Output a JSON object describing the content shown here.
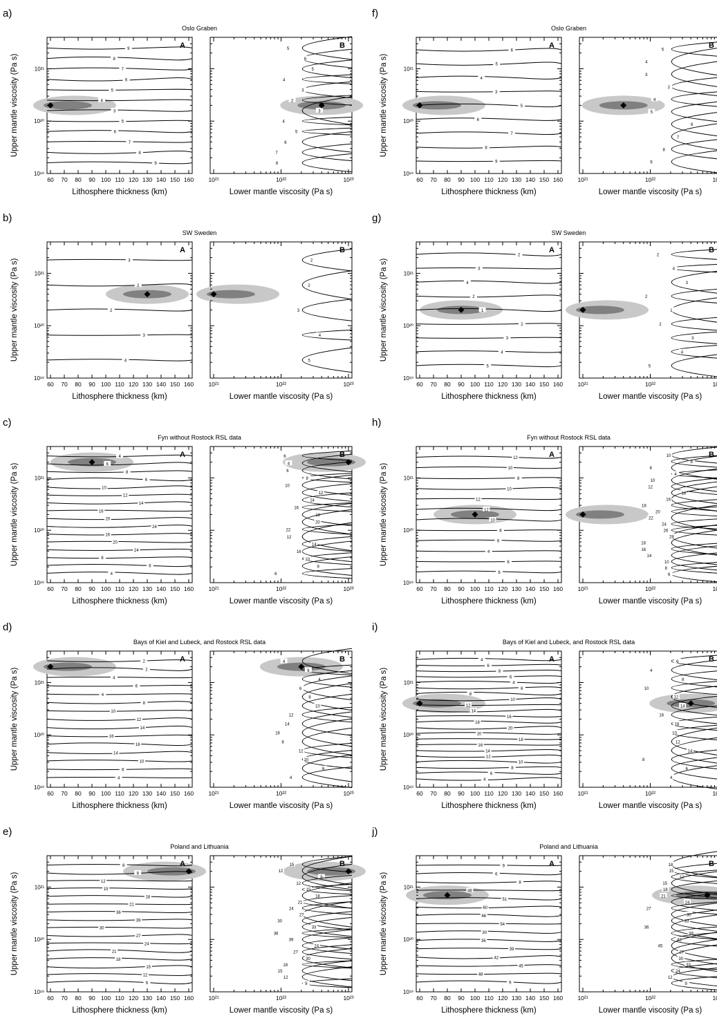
{
  "chart_data": [
    {
      "type": "heatmap",
      "panel": "a)",
      "title": "Oslo Graben",
      "best_fit": [
        {
          "plot": "A",
          "x": 60,
          "y": 2e+20
        },
        {
          "plot": "B",
          "x": 4e+22,
          "y": 2e+20
        }
      ],
      "contours": {
        "A": [
          "9",
          "8",
          "7",
          "6",
          "5",
          "4",
          "3",
          "5",
          "6",
          "7",
          "8",
          "9"
        ],
        "B": [
          "5",
          "6",
          "5",
          "4",
          "3",
          "2",
          "3",
          "4",
          "5",
          "6",
          "7",
          "8"
        ]
      }
    },
    {
      "type": "heatmap",
      "panel": "b)",
      "title": "SW Sweden",
      "best_fit": [
        {
          "plot": "A",
          "x": 130,
          "y": 4e+20
        },
        {
          "plot": "B",
          "x": 1e+21,
          "y": 4e+20
        }
      ],
      "contours": {
        "A": [
          "3",
          "2",
          "2",
          "3",
          "4"
        ],
        "B": [
          "2",
          "2",
          "3",
          "4",
          "5"
        ]
      }
    },
    {
      "type": "heatmap",
      "panel": "c)",
      "title": "Fyn without Rostock RSL data",
      "best_fit": [
        {
          "plot": "A",
          "x": 90,
          "y": 2e+21
        },
        {
          "plot": "B",
          "x": 1e+23,
          "y": 2e+21
        }
      ],
      "contours": {
        "A": [
          "4",
          "6",
          "8",
          "6",
          "10",
          "12",
          "14",
          "16",
          "20",
          "24",
          "16",
          "20",
          "24",
          "8",
          "6",
          "4"
        ],
        "B": [
          "6",
          "4",
          "6",
          "8",
          "10",
          "12",
          "14",
          "16",
          "18",
          "20",
          "22",
          "12",
          "14",
          "16",
          "10",
          "8",
          "6"
        ]
      }
    },
    {
      "type": "heatmap",
      "panel": "d)",
      "title": "Bays of Kiel and Lubeck, and Rostock RSL data",
      "best_fit": [
        {
          "plot": "A",
          "x": 60,
          "y": 2e+21
        },
        {
          "plot": "B",
          "x": 2e+22,
          "y": 2e+21
        }
      ],
      "contours": {
        "A": [
          "2",
          "2",
          "4",
          "6",
          "4",
          "8",
          "10",
          "12",
          "14",
          "16",
          "16",
          "14",
          "10",
          "6",
          "4"
        ],
        "B": [
          "4",
          "6",
          "4",
          "6",
          "8",
          "10",
          "12",
          "14",
          "16",
          "8",
          "12",
          "10",
          "6",
          "4"
        ]
      }
    },
    {
      "type": "heatmap",
      "panel": "e)",
      "title": "Poland and Lithuania",
      "best_fit": [
        {
          "plot": "A",
          "x": 160,
          "y": 2e+21
        },
        {
          "plot": "B",
          "x": 1e+23,
          "y": 2e+21
        }
      ],
      "contours": {
        "A": [
          "8",
          "9",
          "12",
          "15",
          "18",
          "21",
          "36",
          "39",
          "30",
          "27",
          "24",
          "21",
          "18",
          "15",
          "12",
          "9"
        ],
        "B": [
          "15",
          "12",
          "9",
          "12",
          "15",
          "18",
          "21",
          "24",
          "27",
          "30",
          "33",
          "36",
          "39",
          "24",
          "27",
          "30",
          "18",
          "15",
          "12",
          "9"
        ]
      }
    },
    {
      "type": "heatmap",
      "panel": "f)",
      "title": "Oslo Graben",
      "best_fit": [
        {
          "plot": "A",
          "x": 60,
          "y": 2e+20
        },
        {
          "plot": "B",
          "x": 4e+21,
          "y": 2e+20
        }
      ],
      "contours": {
        "A": [
          "6",
          "5",
          "4",
          "3",
          "5",
          "6",
          "7",
          "8",
          "9"
        ],
        "B": [
          "5",
          "4",
          "3",
          "2",
          "4",
          "5",
          "6",
          "7",
          "8",
          "9"
        ]
      }
    },
    {
      "type": "heatmap",
      "panel": "g)",
      "title": "SW Sweden",
      "best_fit": [
        {
          "plot": "A",
          "x": 90,
          "y": 2e+20
        },
        {
          "plot": "B",
          "x": 1e+21,
          "y": 2e+20
        }
      ],
      "contours": {
        "A": [
          "2",
          "3",
          "4",
          "2",
          "1",
          "2",
          "3",
          "4",
          "5"
        ],
        "B": [
          "2",
          "4",
          "3",
          "2",
          "1",
          "2",
          "3",
          "4",
          "5"
        ]
      }
    },
    {
      "type": "heatmap",
      "panel": "h)",
      "title": "Fyn without Rostock RSL data",
      "best_fit": [
        {
          "plot": "A",
          "x": 100,
          "y": 2e+20
        },
        {
          "plot": "B",
          "x": 1e+21,
          "y": 2e+20
        }
      ],
      "contours": {
        "A": [
          "12",
          "10",
          "8",
          "10",
          "12",
          "12",
          "10",
          "8",
          "6",
          "4",
          "6",
          "6"
        ],
        "B": [
          "10",
          "8",
          "6",
          "4",
          "10",
          "12",
          "14",
          "16",
          "18",
          "20",
          "22",
          "24",
          "26",
          "28",
          "18",
          "16",
          "14",
          "10",
          "8",
          "6"
        ]
      }
    },
    {
      "type": "heatmap",
      "panel": "i)",
      "title": "Bays of Kiel and Lubeck, and Rostock RSL data",
      "best_fit": [
        {
          "plot": "A",
          "x": 60,
          "y": 4e+20
        },
        {
          "plot": "B",
          "x": 4e+22,
          "y": 4e+20
        }
      ],
      "contours": {
        "A": [
          "4",
          "6",
          "8",
          "6",
          "4",
          "6",
          "8",
          "10",
          "12",
          "14",
          "16",
          "18",
          "20",
          "20",
          "18",
          "16",
          "14",
          "12",
          "10",
          "8",
          "6",
          "4"
        ],
        "B": [
          "6",
          "4",
          "8",
          "10",
          "12",
          "14",
          "16",
          "18",
          "10",
          "12",
          "14",
          "8",
          "6",
          "4"
        ]
      }
    },
    {
      "type": "heatmap",
      "panel": "j)",
      "title": "Poland and Lithuania",
      "best_fit": [
        {
          "plot": "A",
          "x": 80,
          "y": 7e+20
        },
        {
          "plot": "B",
          "x": 7e+22,
          "y": 7e+20
        }
      ],
      "contours": {
        "A": [
          "9",
          "6",
          "8",
          "48",
          "51",
          "60",
          "66",
          "54",
          "30",
          "36",
          "39",
          "42",
          "45",
          "48",
          "9"
        ],
        "B": [
          "18",
          "15",
          "12",
          "15",
          "18",
          "21",
          "24",
          "27",
          "30",
          "33",
          "36",
          "39",
          "42",
          "45",
          "27",
          "30",
          "33",
          "24",
          "12",
          "9"
        ]
      }
    }
  ],
  "axes": {
    "x_label_A": "Lithosphere thickness (km)",
    "x_label_B": "Lower mantle viscosity (Pa s)",
    "y_label": "Upper mantle viscosity (Pa s)",
    "x_ticks_A": [
      "60",
      "70",
      "80",
      "90",
      "100",
      "110",
      "120",
      "130",
      "140",
      "150",
      "160"
    ],
    "x_ticks_B": [
      "10²¹",
      "10²²",
      "10²³"
    ],
    "y_ticks": [
      "10¹⁹",
      "10²⁰",
      "10²¹"
    ],
    "plot_tag_A": "A",
    "plot_tag_B": "B"
  },
  "colors": {
    "light_shade": "#c8c8c8",
    "dark_shade": "#808080",
    "line": "#000000",
    "marker": "#000000"
  }
}
